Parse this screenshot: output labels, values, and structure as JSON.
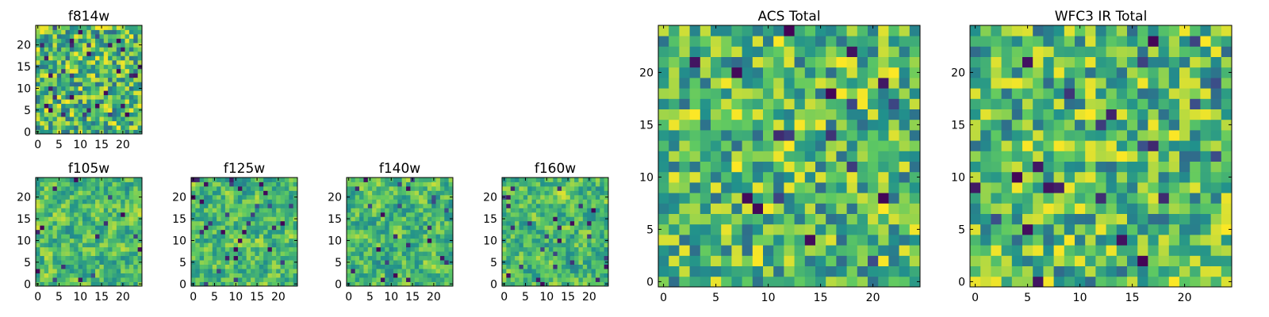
{
  "figure": {
    "description_colormap": "viridis",
    "colormap_stops": [
      "#440154",
      "#3b528b",
      "#21918c",
      "#5ec962",
      "#fde725"
    ]
  },
  "chart_data": [
    {
      "type": "heatmap",
      "title": "f814w",
      "xlabel": "",
      "ylabel": "",
      "xticks": [
        0,
        5,
        10,
        15,
        20
      ],
      "yticks": [
        0,
        5,
        10,
        15,
        20
      ],
      "xlim": [
        0,
        25
      ],
      "ylim": [
        0,
        25
      ],
      "grid": [
        25,
        25
      ],
      "seed": 11,
      "smooth": 0,
      "vmin": 0.0,
      "vmax": 1.0
    },
    {
      "type": "heatmap",
      "title": "f105w",
      "xlabel": "",
      "ylabel": "",
      "xticks": [
        0,
        5,
        10,
        15,
        20
      ],
      "yticks": [
        0,
        5,
        10,
        15,
        20
      ],
      "xlim": [
        0,
        25
      ],
      "ylim": [
        0,
        25
      ],
      "grid": [
        25,
        25
      ],
      "seed": 23,
      "smooth": 1,
      "vmin": 0.0,
      "vmax": 1.0
    },
    {
      "type": "heatmap",
      "title": "f125w",
      "xlabel": "",
      "ylabel": "",
      "xticks": [
        0,
        5,
        10,
        15,
        20
      ],
      "yticks": [
        0,
        5,
        10,
        15,
        20
      ],
      "xlim": [
        0,
        25
      ],
      "ylim": [
        0,
        25
      ],
      "grid": [
        25,
        25
      ],
      "seed": 37,
      "smooth": 1,
      "vmin": 0.0,
      "vmax": 1.0
    },
    {
      "type": "heatmap",
      "title": "f140w",
      "xlabel": "",
      "ylabel": "",
      "xticks": [
        0,
        5,
        10,
        15,
        20
      ],
      "yticks": [
        0,
        5,
        10,
        15,
        20
      ],
      "xlim": [
        0,
        25
      ],
      "ylim": [
        0,
        25
      ],
      "grid": [
        25,
        25
      ],
      "seed": 41,
      "smooth": 1,
      "vmin": 0.0,
      "vmax": 1.0
    },
    {
      "type": "heatmap",
      "title": "f160w",
      "xlabel": "",
      "ylabel": "",
      "xticks": [
        0,
        5,
        10,
        15,
        20
      ],
      "yticks": [
        0,
        5,
        10,
        15,
        20
      ],
      "xlim": [
        0,
        25
      ],
      "ylim": [
        0,
        25
      ],
      "grid": [
        25,
        25
      ],
      "seed": 53,
      "smooth": 1,
      "vmin": 0.0,
      "vmax": 1.0
    },
    {
      "type": "heatmap",
      "title": "ACS Total",
      "xlabel": "",
      "ylabel": "",
      "xticks": [
        0,
        5,
        10,
        15,
        20
      ],
      "yticks": [
        0,
        5,
        10,
        15,
        20
      ],
      "xlim": [
        0,
        25
      ],
      "ylim": [
        0,
        25
      ],
      "grid": [
        25,
        25
      ],
      "seed": 67,
      "smooth": 0,
      "vmin": 0.0,
      "vmax": 1.0
    },
    {
      "type": "heatmap",
      "title": "WFC3 IR Total",
      "xlabel": "",
      "ylabel": "",
      "xticks": [
        0,
        5,
        10,
        15,
        20
      ],
      "yticks": [
        0,
        5,
        10,
        15,
        20
      ],
      "xlim": [
        0,
        25
      ],
      "ylim": [
        0,
        25
      ],
      "grid": [
        25,
        25
      ],
      "seed": 79,
      "smooth": 0,
      "vmin": 0.0,
      "vmax": 1.0
    }
  ]
}
